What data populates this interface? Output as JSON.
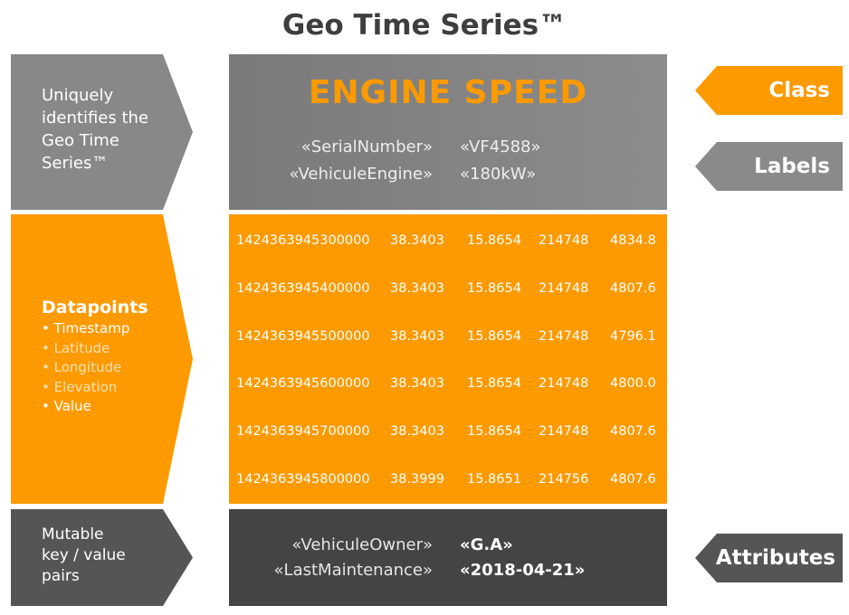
{
  "title": "Geo Time Series™",
  "left_labels": {
    "top": [
      "Uniquely",
      "identifies the",
      "Geo Time",
      "Series™"
    ],
    "datapoints_heading": "Datapoints",
    "datapoints_items": [
      {
        "text": "• Timestamp",
        "highlighted": true
      },
      {
        "text": "• Latitude",
        "highlighted": false
      },
      {
        "text": "• Longitude",
        "highlighted": false
      },
      {
        "text": "• Elevation",
        "highlighted": false
      },
      {
        "text": "• Value",
        "highlighted": true
      }
    ],
    "bottom": [
      "Mutable",
      "key / value",
      "pairs"
    ]
  },
  "class_box": {
    "class_name": "ENGINE SPEED",
    "labels": [
      {
        "key": "«SerialNumber»",
        "value": "«VF4588»"
      },
      {
        "key": "«VehiculeEngine»",
        "value": "«180kW»"
      }
    ]
  },
  "datapoints": [
    [
      "1424363945300000",
      "38.3403",
      "15.8654",
      "214748",
      "4834.8"
    ],
    [
      "1424363945400000",
      "38.3403",
      "15.8654",
      "214748",
      "4807.6"
    ],
    [
      "1424363945500000",
      "38.3403",
      "15.8654",
      "214748",
      "4796.1"
    ],
    [
      "1424363945600000",
      "38.3403",
      "15.8654",
      "214748",
      "4800.0"
    ],
    [
      "1424363945700000",
      "38.3403",
      "15.8654",
      "214748",
      "4807.6"
    ],
    [
      "1424363945800000",
      "38.3999",
      "15.8651",
      "214756",
      "4807.6"
    ]
  ],
  "attributes": [
    {
      "key": "«VehiculeOwner»",
      "value": "«G.A»"
    },
    {
      "key": "«LastMaintenance»",
      "value": "«2018-04-21»"
    }
  ],
  "tags": {
    "class": "Class",
    "labels": "Labels",
    "attributes": "Attributes"
  },
  "colors": {
    "orange": "#fc9a00",
    "gray": "#888888",
    "dark": "#444444",
    "title": "#3e3e3e"
  }
}
